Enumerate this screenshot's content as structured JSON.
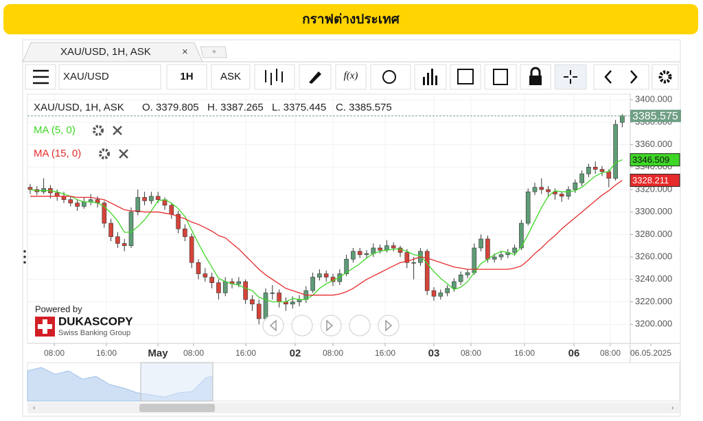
{
  "header": {
    "title": "กราฟต่างประเทศ"
  },
  "tabs": [
    {
      "label": "XAU/USD, 1H, ASK",
      "close": "×"
    },
    {
      "label": "+"
    }
  ],
  "toolbar": {
    "symbol": "XAU/USD",
    "period": "1H",
    "side": "ASK",
    "function": "f(x)"
  },
  "info": [
    "XAU/USD, 1H, ASK",
    "O. 3379.805",
    "H. 3387.265",
    "L. 3375.445",
    "C. 3385.575"
  ],
  "branding": {
    "powered": "Powered by",
    "name": "DUKASCOPY",
    "tagline": "Swiss Banking Group"
  },
  "chart_data": {
    "type": "candlestick",
    "up_color": "#5e9c76",
    "down_color": "#d4443a",
    "candles": [
      [
        3322,
        3325,
        3316,
        3320
      ],
      [
        3320,
        3323,
        3315,
        3318
      ],
      [
        3318,
        3330,
        3316,
        3321
      ],
      [
        3321,
        3324,
        3312,
        3317
      ],
      [
        3317,
        3320,
        3310,
        3314
      ],
      [
        3314,
        3318,
        3308,
        3311
      ],
      [
        3311,
        3314,
        3305,
        3308
      ],
      [
        3308,
        3311,
        3301,
        3305
      ],
      [
        3305,
        3313,
        3303,
        3309
      ],
      [
        3309,
        3316,
        3306,
        3311
      ],
      [
        3311,
        3314,
        3304,
        3308
      ],
      [
        3308,
        3310,
        3286,
        3290
      ],
      [
        3290,
        3294,
        3274,
        3278
      ],
      [
        3278,
        3282,
        3268,
        3272
      ],
      [
        3272,
        3276,
        3265,
        3270
      ],
      [
        3270,
        3304,
        3268,
        3300
      ],
      [
        3300,
        3320,
        3297,
        3313
      ],
      [
        3313,
        3318,
        3306,
        3310
      ],
      [
        3310,
        3318,
        3307,
        3314
      ],
      [
        3314,
        3318,
        3308,
        3311
      ],
      [
        3311,
        3313,
        3302,
        3306
      ],
      [
        3306,
        3308,
        3294,
        3298
      ],
      [
        3298,
        3301,
        3281,
        3285
      ],
      [
        3285,
        3289,
        3274,
        3278
      ],
      [
        3278,
        3281,
        3250,
        3255
      ],
      [
        3255,
        3258,
        3240,
        3245
      ],
      [
        3245,
        3250,
        3238,
        3242
      ],
      [
        3242,
        3246,
        3232,
        3237
      ],
      [
        3237,
        3240,
        3222,
        3228
      ],
      [
        3228,
        3242,
        3225,
        3238
      ],
      [
        3238,
        3241,
        3232,
        3236
      ],
      [
        3236,
        3242,
        3233,
        3238
      ],
      [
        3238,
        3240,
        3218,
        3222
      ],
      [
        3222,
        3226,
        3212,
        3218
      ],
      [
        3218,
        3222,
        3200,
        3205
      ],
      [
        3205,
        3232,
        3203,
        3228
      ],
      [
        3228,
        3235,
        3222,
        3228
      ],
      [
        3228,
        3231,
        3215,
        3220
      ],
      [
        3220,
        3224,
        3212,
        3218
      ],
      [
        3218,
        3225,
        3214,
        3220
      ],
      [
        3220,
        3226,
        3216,
        3222
      ],
      [
        3222,
        3234,
        3219,
        3230
      ],
      [
        3230,
        3246,
        3228,
        3242
      ],
      [
        3242,
        3249,
        3239,
        3245
      ],
      [
        3245,
        3248,
        3238,
        3242
      ],
      [
        3242,
        3245,
        3234,
        3238
      ],
      [
        3238,
        3249,
        3235,
        3245
      ],
      [
        3245,
        3262,
        3243,
        3258
      ],
      [
        3258,
        3268,
        3255,
        3265
      ],
      [
        3265,
        3268,
        3259,
        3262
      ],
      [
        3262,
        3266,
        3259,
        3263
      ],
      [
        3263,
        3272,
        3260,
        3268
      ],
      [
        3268,
        3271,
        3263,
        3266
      ],
      [
        3266,
        3275,
        3264,
        3270
      ],
      [
        3270,
        3273,
        3265,
        3268
      ],
      [
        3268,
        3270,
        3260,
        3264
      ],
      [
        3264,
        3267,
        3250,
        3255
      ],
      [
        3255,
        3260,
        3240,
        3255
      ],
      [
        3255,
        3268,
        3252,
        3265
      ],
      [
        3265,
        3267,
        3226,
        3230
      ],
      [
        3230,
        3233,
        3221,
        3225
      ],
      [
        3225,
        3231,
        3222,
        3228
      ],
      [
        3228,
        3235,
        3225,
        3232
      ],
      [
        3232,
        3241,
        3229,
        3238
      ],
      [
        3238,
        3247,
        3235,
        3244
      ],
      [
        3244,
        3249,
        3241,
        3246
      ],
      [
        3246,
        3272,
        3244,
        3268
      ],
      [
        3268,
        3280,
        3265,
        3276
      ],
      [
        3276,
        3279,
        3255,
        3258
      ],
      [
        3258,
        3263,
        3255,
        3260
      ],
      [
        3260,
        3265,
        3257,
        3262
      ],
      [
        3262,
        3267,
        3259,
        3264
      ],
      [
        3264,
        3271,
        3261,
        3268
      ],
      [
        3268,
        3293,
        3266,
        3290
      ],
      [
        3290,
        3321,
        3288,
        3318
      ],
      [
        3318,
        3326,
        3315,
        3322
      ],
      [
        3322,
        3330,
        3316,
        3320
      ],
      [
        3320,
        3323,
        3313,
        3318
      ],
      [
        3318,
        3321,
        3311,
        3316
      ],
      [
        3316,
        3318,
        3309,
        3314
      ],
      [
        3314,
        3323,
        3311,
        3320
      ],
      [
        3320,
        3329,
        3317,
        3326
      ],
      [
        3326,
        3337,
        3323,
        3334
      ],
      [
        3334,
        3343,
        3331,
        3340
      ],
      [
        3340,
        3345,
        3334,
        3338
      ],
      [
        3338,
        3341,
        3332,
        3336
      ],
      [
        3336,
        3338,
        3322,
        3330
      ],
      [
        3330,
        3382,
        3328,
        3378
      ],
      [
        3379.805,
        3387.265,
        3375.445,
        3385.575
      ]
    ],
    "series": [
      {
        "name": "MA (5, 0)",
        "color": "#3ed626",
        "values": [
          3320,
          3319,
          3319,
          3319,
          3318,
          3316,
          3314,
          3311,
          3309,
          3309,
          3308,
          3305,
          3299,
          3292,
          3282,
          3282,
          3287,
          3293,
          3301,
          3310,
          3311,
          3308,
          3303,
          3296,
          3284,
          3272,
          3261,
          3251,
          3241,
          3238,
          3236,
          3235,
          3232,
          3230,
          3224,
          3222,
          3220,
          3220,
          3220,
          3223,
          3222,
          3222,
          3226,
          3232,
          3236,
          3239,
          3242,
          3246,
          3250,
          3254,
          3259,
          3263,
          3265,
          3266,
          3267,
          3267,
          3265,
          3262,
          3261,
          3254,
          3247,
          3241,
          3236,
          3231,
          3233,
          3238,
          3246,
          3254,
          3258,
          3262,
          3265,
          3264,
          3262,
          3269,
          3280,
          3292,
          3304,
          3314,
          3319,
          3318,
          3318,
          3319,
          3322,
          3327,
          3332,
          3335,
          3336,
          3344,
          3346.509
        ]
      },
      {
        "name": "MA (15, 0)",
        "color": "#e52b2b",
        "values": [
          3314,
          3314,
          3314,
          3314,
          3314,
          3314,
          3314,
          3313,
          3313,
          3313,
          3312,
          3311,
          3308,
          3305,
          3302,
          3301,
          3301,
          3300,
          3300,
          3300,
          3299,
          3298,
          3296,
          3294,
          3291,
          3289,
          3286,
          3283,
          3279,
          3277,
          3272,
          3267,
          3261,
          3255,
          3249,
          3244,
          3240,
          3236,
          3232,
          3230,
          3228,
          3226,
          3226,
          3226,
          3226,
          3226,
          3227,
          3229,
          3232,
          3236,
          3240,
          3243,
          3246,
          3249,
          3252,
          3255,
          3256,
          3258,
          3260,
          3259,
          3257,
          3255,
          3253,
          3251,
          3250,
          3249,
          3249,
          3249,
          3249,
          3249,
          3249,
          3249,
          3250,
          3252,
          3257,
          3263,
          3268,
          3274,
          3279,
          3285,
          3290,
          3295,
          3300,
          3305,
          3310,
          3315,
          3319,
          3324,
          3328.211
        ]
      }
    ],
    "price_tags": [
      {
        "value": 3385.575,
        "label": "3385.575",
        "color": "#6f9f84"
      },
      {
        "value": 3346.509,
        "label": "3346.509",
        "color": "#3ed626"
      },
      {
        "value": 3328.211,
        "label": "3328.211",
        "color": "#e52b2b"
      }
    ],
    "ylim": [
      3183,
      3405
    ],
    "yticks": [
      {
        "value": 3200,
        "label": "3200.000"
      },
      {
        "value": 3220,
        "label": "3220.000"
      },
      {
        "value": 3240,
        "label": "3240.000"
      },
      {
        "value": 3260,
        "label": "3260.000"
      },
      {
        "value": 3280,
        "label": "3280.000"
      },
      {
        "value": 3300,
        "label": "3300.000"
      },
      {
        "value": 3320,
        "label": "3320.000"
      },
      {
        "value": 3340,
        "label": "3340.000"
      },
      {
        "value": 3360,
        "label": "3360.000"
      },
      {
        "value": 3380,
        "label": "3380.000"
      },
      {
        "value": 3400,
        "label": "3400.000"
      }
    ],
    "x_labels": [
      "08:00",
      "16:00",
      "May",
      "08:00",
      "16:00",
      "02",
      "08:00",
      "16:00",
      "03",
      "08:00",
      "16:00",
      "06",
      "08:00",
      "06.05.2025"
    ],
    "grid": true
  }
}
